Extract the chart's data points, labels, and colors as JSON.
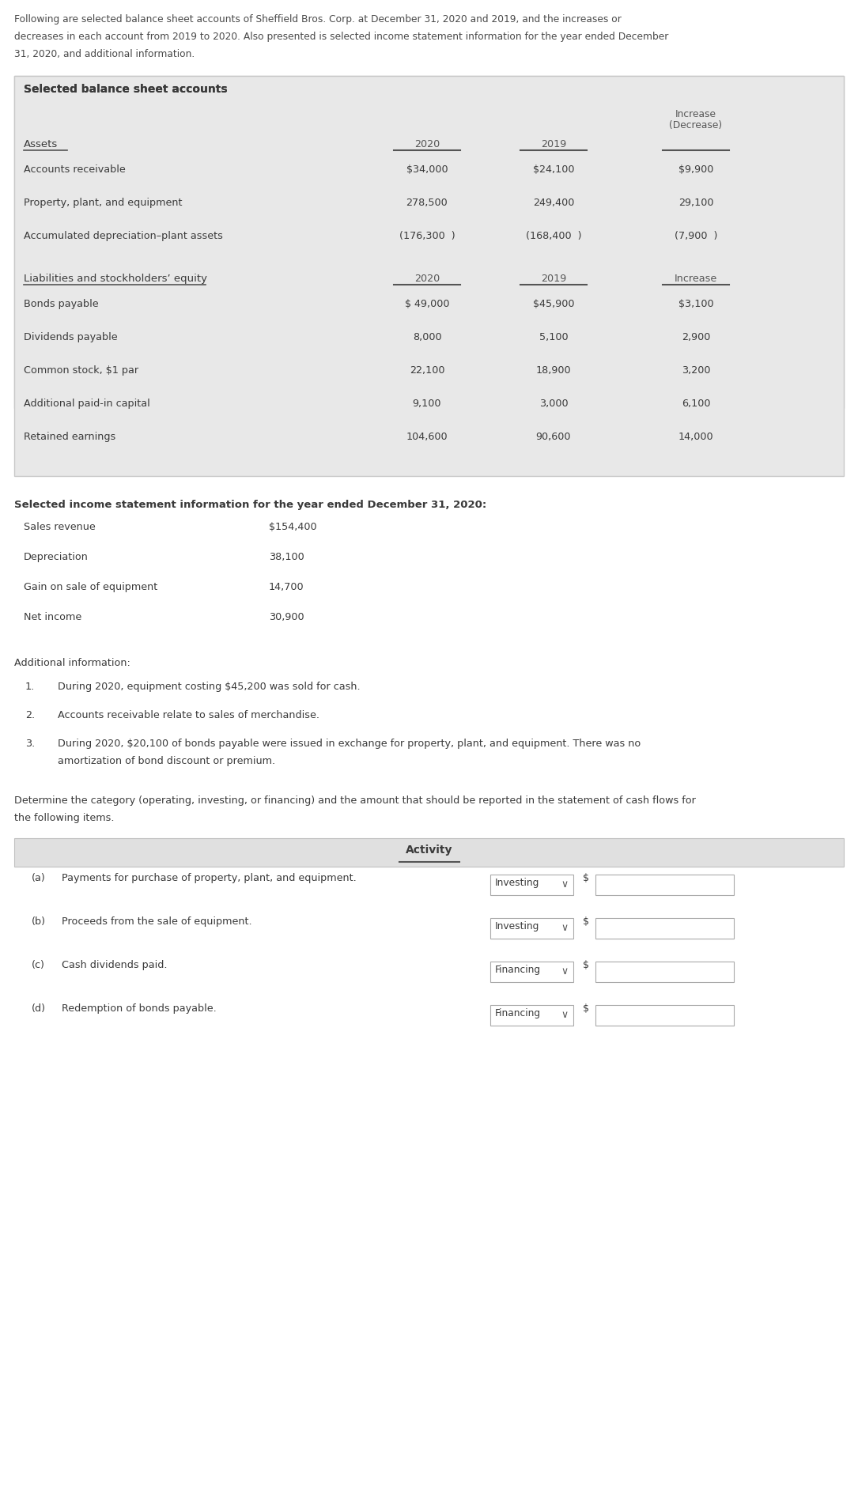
{
  "intro_lines": [
    "Following are selected balance sheet accounts of Sheffield Bros. Corp. at December 31, 2020 and 2019, and the increases or",
    "decreases in each account from 2019 to 2020. Also presented is selected income statement information for the year ended December",
    "31, 2020, and additional information."
  ],
  "table1_title": "Selected balance sheet accounts",
  "table1_section1_label": "Assets",
  "table1_section1_rows": [
    [
      "Accounts receivable",
      "$34,000",
      "$24,100",
      "$9,900"
    ],
    [
      "Property, plant, and equipment",
      "278,500",
      "249,400",
      "29,100"
    ],
    [
      "Accumulated depreciation–plant assets",
      "(176,300  )",
      "(168,400  )",
      "(7,900  )"
    ]
  ],
  "table1_section2_label": "Liabilities and stockholders’ equity",
  "table1_section2_rows": [
    [
      "Bonds payable",
      "$ 49,000",
      "$45,900",
      "$3,100"
    ],
    [
      "Dividends payable",
      "8,000",
      "5,100",
      "2,900"
    ],
    [
      "Common stock, $1 par",
      "22,100",
      "18,900",
      "3,200"
    ],
    [
      "Additional paid-in capital",
      "9,100",
      "3,000",
      "6,100"
    ],
    [
      "Retained earnings",
      "104,600",
      "90,600",
      "14,000"
    ]
  ],
  "income_label": "Selected income statement information for the year ended December 31, 2020:",
  "income_rows": [
    [
      "Sales revenue",
      "$154,400"
    ],
    [
      "Depreciation",
      "38,100"
    ],
    [
      "Gain on sale of equipment",
      "14,700"
    ],
    [
      "Net income",
      "30,900"
    ]
  ],
  "additional_label": "Additional information:",
  "additional_items": [
    [
      "During 2020, equipment costing $45,200 was sold for cash.",
      ""
    ],
    [
      "Accounts receivable relate to sales of merchandise.",
      ""
    ],
    [
      "During 2020, $20,100 of bonds payable were issued in exchange for property, plant, and equipment. There was no",
      "amortization of bond discount or premium."
    ]
  ],
  "determine_text": [
    "Determine the category (operating, investing, or financing) and the amount that should be reported in the statement of cash flows for",
    "the following items."
  ],
  "activity_header": "Activity",
  "activity_rows": [
    {
      "label": "(a)",
      "desc": "Payments for purchase of property, plant, and equipment.",
      "activity": "Investing"
    },
    {
      "label": "(b)",
      "desc": "Proceeds from the sale of equipment.",
      "activity": "Investing"
    },
    {
      "label": "(c)",
      "desc": "Cash dividends paid.",
      "activity": "Financing"
    },
    {
      "label": "(d)",
      "desc": "Redemption of bonds payable.",
      "activity": "Financing"
    }
  ],
  "white": "#ffffff",
  "text_color": "#4a4a4a",
  "table_bg": "#e8e8e8",
  "border_color": "#cccccc"
}
